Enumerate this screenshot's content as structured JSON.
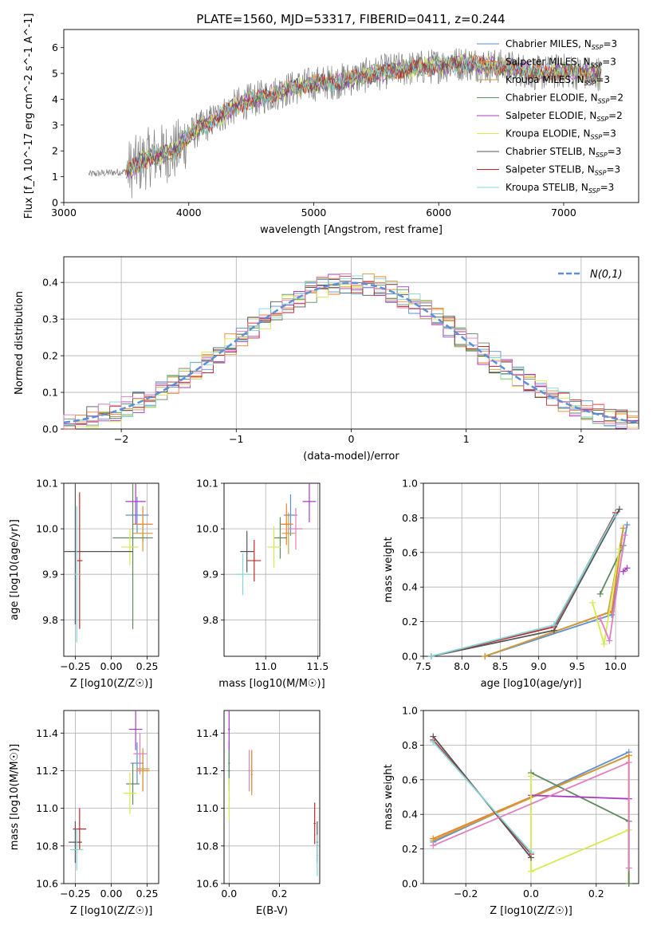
{
  "figure": {
    "title": "PLATE=1560, MJD=53317, FIBERID=0411, z=0.244"
  },
  "colors": {
    "Chabrier MILES": "#5b8fd6",
    "Salpeter MILES": "#f07f2a",
    "Kroupa MILES": "#c99e3c",
    "Chabrier ELODIE": "#5e8a5e",
    "Salpeter ELODIE": "#a83bc4",
    "Kroupa ELODIE": "#d6ea4f",
    "Chabrier STELIB": "#555555",
    "Salpeter STELIB": "#c0272d",
    "Kroupa STELIB": "#7fd7d8",
    "data": "#808080",
    "gaussian": "#5b8fd6",
    "pink": "#e07fbf"
  },
  "chart_data": [
    {
      "id": "spectrum",
      "type": "line",
      "xlabel": "wavelength [Angstrom, rest frame]",
      "ylabel": "Flux [f_λ 10^-17 erg cm^-2 s^-1 A^-1]",
      "xlim": [
        3000,
        7600
      ],
      "ylim": [
        0,
        6.7
      ],
      "xticks": [
        3000,
        4000,
        5000,
        6000,
        7000
      ],
      "yticks": [
        0,
        1,
        2,
        3,
        4,
        5,
        6
      ],
      "legend_position": "right",
      "legend": [
        {
          "name": "Chabrier MILES",
          "nssp": "3"
        },
        {
          "name": "Salpeter MILES",
          "nssp": "3"
        },
        {
          "name": "Kroupa MILES",
          "nssp": "3"
        },
        {
          "name": "Chabrier ELODIE",
          "nssp": "2"
        },
        {
          "name": "Salpeter ELODIE",
          "nssp": "2"
        },
        {
          "name": "Kroupa ELODIE",
          "nssp": "3"
        },
        {
          "name": "Chabrier STELIB",
          "nssp": "3"
        },
        {
          "name": "Salpeter STELIB",
          "nssp": "3"
        },
        {
          "name": "Kroupa STELIB",
          "nssp": "3"
        }
      ],
      "data_envelope": {
        "x": [
          3200,
          3500,
          3700,
          3900,
          4000,
          4200,
          4400,
          4600,
          4800,
          5000,
          5200,
          5400,
          5600,
          5800,
          6000,
          6200,
          6400,
          6600,
          6800,
          7000,
          7200,
          7300
        ],
        "y": [
          1.1,
          1.2,
          1.8,
          2.0,
          2.6,
          3.2,
          3.8,
          4.1,
          4.4,
          4.6,
          4.7,
          4.9,
          5.1,
          5.2,
          5.3,
          5.4,
          5.3,
          5.2,
          5.0,
          5.1,
          5.0,
          5.0
        ]
      }
    },
    {
      "id": "residual_hist",
      "type": "bar",
      "xlabel": "(data-model)/error",
      "ylabel": "Normed distribution",
      "xlim": [
        -2.5,
        2.5
      ],
      "ylim": [
        0,
        0.47
      ],
      "xticks": [
        -2,
        -1,
        0,
        1,
        2
      ],
      "yticks": [
        0.0,
        0.1,
        0.2,
        0.3,
        0.4
      ],
      "legend_position": "top-right",
      "legend": [
        {
          "name": "N(0,1)"
        }
      ],
      "bins": 50
    },
    {
      "id": "age_vs_Z",
      "type": "scatter",
      "xlabel": "Z [log10(Z/Z☉)]",
      "ylabel": "age [log10(age/yr)]",
      "xlim": [
        -0.33,
        0.33
      ],
      "ylim": [
        9.72,
        10.1
      ],
      "xticks": [
        -0.25,
        0.0,
        0.25
      ],
      "yticks": [
        9.8,
        9.9,
        10.0,
        10.1
      ],
      "points": [
        {
          "model": "Chabrier MILES",
          "x": 0.18,
          "y": 10.03,
          "xerr": 0.08,
          "yerr": 0.04
        },
        {
          "model": "Salpeter MILES",
          "x": 0.22,
          "y": 10.01,
          "xerr": 0.07,
          "yerr": 0.04
        },
        {
          "model": "Kroupa MILES",
          "x": 0.22,
          "y": 9.99,
          "xerr": 0.07,
          "yerr": 0.04
        },
        {
          "model": "Chabrier ELODIE",
          "x": 0.15,
          "y": 9.98,
          "xerr": 0.14,
          "yerr": 0.2
        },
        {
          "model": "Salpeter ELODIE",
          "x": 0.17,
          "y": 10.06,
          "xerr": 0.07,
          "yerr": 0.05
        },
        {
          "model": "Kroupa ELODIE",
          "x": 0.13,
          "y": 9.96,
          "xerr": 0.06,
          "yerr": 0.04
        },
        {
          "model": "Chabrier STELIB",
          "x": -0.25,
          "y": 9.95,
          "xerr": 0.4,
          "yerr": 0.16
        },
        {
          "model": "Salpeter STELIB",
          "x": -0.22,
          "y": 9.93,
          "xerr": 0.02,
          "yerr": 0.15
        },
        {
          "model": "Kroupa STELIB",
          "x": -0.24,
          "y": 9.9,
          "xerr": 0.02,
          "yerr": 0.15
        }
      ]
    },
    {
      "id": "age_vs_mass",
      "type": "scatter",
      "xlabel": "mass [log10(M/M☉)]",
      "ylabel": "",
      "xlim": [
        10.6,
        11.52
      ],
      "ylim": [
        9.72,
        10.1
      ],
      "xticks": [
        11.0,
        11.5
      ],
      "yticks": [
        9.8,
        9.9,
        10.0,
        10.1
      ],
      "points": [
        {
          "model": "Chabrier MILES",
          "x": 11.24,
          "y": 10.03
        },
        {
          "model": "Salpeter MILES",
          "x": 11.2,
          "y": 10.01
        },
        {
          "model": "Kroupa MILES",
          "x": 11.22,
          "y": 9.99
        },
        {
          "model": "Chabrier ELODIE",
          "x": 11.14,
          "y": 9.98
        },
        {
          "model": "Salpeter ELODIE",
          "x": 11.42,
          "y": 10.06
        },
        {
          "model": "Kroupa ELODIE",
          "x": 11.08,
          "y": 9.96
        },
        {
          "model": "Chabrier STELIB",
          "x": 10.82,
          "y": 9.95
        },
        {
          "model": "Salpeter STELIB",
          "x": 10.89,
          "y": 9.93
        },
        {
          "model": "Kroupa STELIB",
          "x": 10.78,
          "y": 9.9
        },
        {
          "model": "Pink",
          "x": 11.29,
          "y": 10.0
        }
      ]
    },
    {
      "id": "weight_vs_age",
      "type": "line",
      "xlabel": "age [log10(age/yr)]",
      "ylabel": "mass weight",
      "xlim": [
        7.5,
        10.3
      ],
      "ylim": [
        0,
        1.0
      ],
      "xticks": [
        7.5,
        8.0,
        8.5,
        9.0,
        9.5,
        10.0
      ],
      "yticks": [
        0.0,
        0.2,
        0.4,
        0.6,
        0.8,
        1.0
      ],
      "grid": true,
      "series": [
        {
          "model": "Chabrier MILES",
          "x": [
            8.3,
            9.95,
            10.15
          ],
          "y": [
            0.0,
            0.24,
            0.76
          ]
        },
        {
          "model": "Salpeter MILES",
          "x": [
            8.3,
            9.95,
            10.1
          ],
          "y": [
            0.0,
            0.26,
            0.74
          ]
        },
        {
          "model": "Kroupa MILES",
          "x": [
            8.3,
            9.9,
            10.1
          ],
          "y": [
            0.0,
            0.25,
            0.74
          ]
        },
        {
          "model": "Chabrier ELODIE",
          "x": [
            9.8,
            10.1
          ],
          "y": [
            0.36,
            0.64
          ]
        },
        {
          "model": "Salpeter ELODIE",
          "x": [
            10.1,
            10.15
          ],
          "y": [
            0.49,
            0.51
          ]
        },
        {
          "model": "Kroupa ELODIE",
          "x": [
            9.7,
            9.85,
            10.05
          ],
          "y": [
            0.31,
            0.07,
            0.62
          ]
        },
        {
          "model": "Chabrier STELIB",
          "x": [
            7.6,
            9.2,
            10.05
          ],
          "y": [
            0.0,
            0.15,
            0.85
          ]
        },
        {
          "model": "Salpeter STELIB",
          "x": [
            7.6,
            9.2,
            10.0
          ],
          "y": [
            0.0,
            0.17,
            0.83
          ]
        },
        {
          "model": "Kroupa STELIB",
          "x": [
            7.6,
            9.2,
            10.0
          ],
          "y": [
            0.0,
            0.18,
            0.82
          ]
        },
        {
          "model": "Pink",
          "x": [
            9.8,
            9.92,
            10.12
          ],
          "y": [
            0.22,
            0.09,
            0.7
          ]
        }
      ]
    },
    {
      "id": "mass_vs_Z",
      "type": "scatter",
      "xlabel": "Z [log10(Z/Z☉)]",
      "ylabel": "mass [log10(M/M☉)]",
      "xlim": [
        -0.33,
        0.33
      ],
      "ylim": [
        10.6,
        11.52
      ],
      "xticks": [
        -0.25,
        0.0,
        0.25
      ],
      "yticks": [
        10.6,
        10.8,
        11.0,
        11.2,
        11.4
      ],
      "points": [
        {
          "model": "Chabrier MILES",
          "x": 0.18,
          "y": 11.24
        },
        {
          "model": "Salpeter MILES",
          "x": 0.22,
          "y": 11.2
        },
        {
          "model": "Kroupa MILES",
          "x": 0.22,
          "y": 11.21
        },
        {
          "model": "Chabrier ELODIE",
          "x": 0.15,
          "y": 11.13
        },
        {
          "model": "Salpeter ELODIE",
          "x": 0.17,
          "y": 11.42
        },
        {
          "model": "Kroupa ELODIE",
          "x": 0.13,
          "y": 11.08
        },
        {
          "model": "Chabrier STELIB",
          "x": -0.25,
          "y": 10.82
        },
        {
          "model": "Salpeter STELIB",
          "x": -0.22,
          "y": 10.89
        },
        {
          "model": "Kroupa STELIB",
          "x": -0.24,
          "y": 10.78
        },
        {
          "model": "Pink",
          "x": 0.2,
          "y": 11.29
        }
      ]
    },
    {
      "id": "mass_vs_ebv",
      "type": "scatter",
      "xlabel": "E(B-V)",
      "ylabel": "",
      "xlim": [
        -0.02,
        0.36
      ],
      "ylim": [
        10.6,
        11.52
      ],
      "xticks": [
        0.0,
        0.2
      ],
      "yticks": [
        10.6,
        10.8,
        11.0,
        11.2,
        11.4
      ],
      "points": [
        {
          "model": "Chabrier MILES",
          "x": 0.0,
          "y": 11.24
        },
        {
          "model": "Salpeter MILES",
          "x": 0.09,
          "y": 11.2
        },
        {
          "model": "Kroupa MILES",
          "x": 0.09,
          "y": 11.18
        },
        {
          "model": "Chabrier ELODIE",
          "x": 0.0,
          "y": 11.2
        },
        {
          "model": "Salpeter ELODIE",
          "x": 0.0,
          "y": 11.42
        },
        {
          "model": "Kroupa ELODIE",
          "x": 0.0,
          "y": 11.05
        },
        {
          "model": "Chabrier STELIB",
          "x": 0.35,
          "y": 10.82
        },
        {
          "model": "Salpeter STELIB",
          "x": 0.34,
          "y": 10.92
        },
        {
          "model": "Kroupa STELIB",
          "x": 0.35,
          "y": 10.75
        },
        {
          "model": "Pink",
          "x": 0.08,
          "y": 11.2
        }
      ]
    },
    {
      "id": "weight_vs_Z",
      "type": "line",
      "xlabel": "Z [log10(Z/Z☉)]",
      "ylabel": "mass weight",
      "xlim": [
        -0.33,
        0.33
      ],
      "ylim": [
        0,
        1.0
      ],
      "xticks": [
        -0.2,
        0.0,
        0.2
      ],
      "yticks": [
        0.0,
        0.2,
        0.4,
        0.6,
        0.8,
        1.0
      ],
      "grid": true,
      "series": [
        {
          "model": "Chabrier MILES",
          "x": [
            -0.3,
            0.3
          ],
          "y": [
            0.24,
            0.76
          ]
        },
        {
          "model": "Salpeter MILES",
          "x": [
            -0.3,
            0.3,
            0.3
          ],
          "y": [
            0.26,
            0.74,
            0.0
          ]
        },
        {
          "model": "Kroupa MILES",
          "x": [
            -0.3,
            0.3,
            0.3
          ],
          "y": [
            0.25,
            0.74,
            0.0
          ]
        },
        {
          "model": "Chabrier ELODIE",
          "x": [
            0.0,
            0.3,
            0.3
          ],
          "y": [
            0.64,
            0.36,
            0.0
          ]
        },
        {
          "model": "Salpeter ELODIE",
          "x": [
            0.0,
            0.3
          ],
          "y": [
            0.51,
            0.49
          ]
        },
        {
          "model": "Kroupa ELODIE",
          "x": [
            0.0,
            0.0,
            0.3
          ],
          "y": [
            0.62,
            0.07,
            0.31
          ]
        },
        {
          "model": "Chabrier STELIB",
          "x": [
            -0.3,
            0.0
          ],
          "y": [
            0.85,
            0.15
          ]
        },
        {
          "model": "Salpeter STELIB",
          "x": [
            -0.3,
            0.0
          ],
          "y": [
            0.83,
            0.17
          ]
        },
        {
          "model": "Kroupa STELIB",
          "x": [
            -0.3,
            0.0
          ],
          "y": [
            0.82,
            0.18
          ]
        },
        {
          "model": "Pink",
          "x": [
            -0.3,
            0.3,
            0.3
          ],
          "y": [
            0.22,
            0.7,
            0.09
          ]
        }
      ]
    }
  ]
}
